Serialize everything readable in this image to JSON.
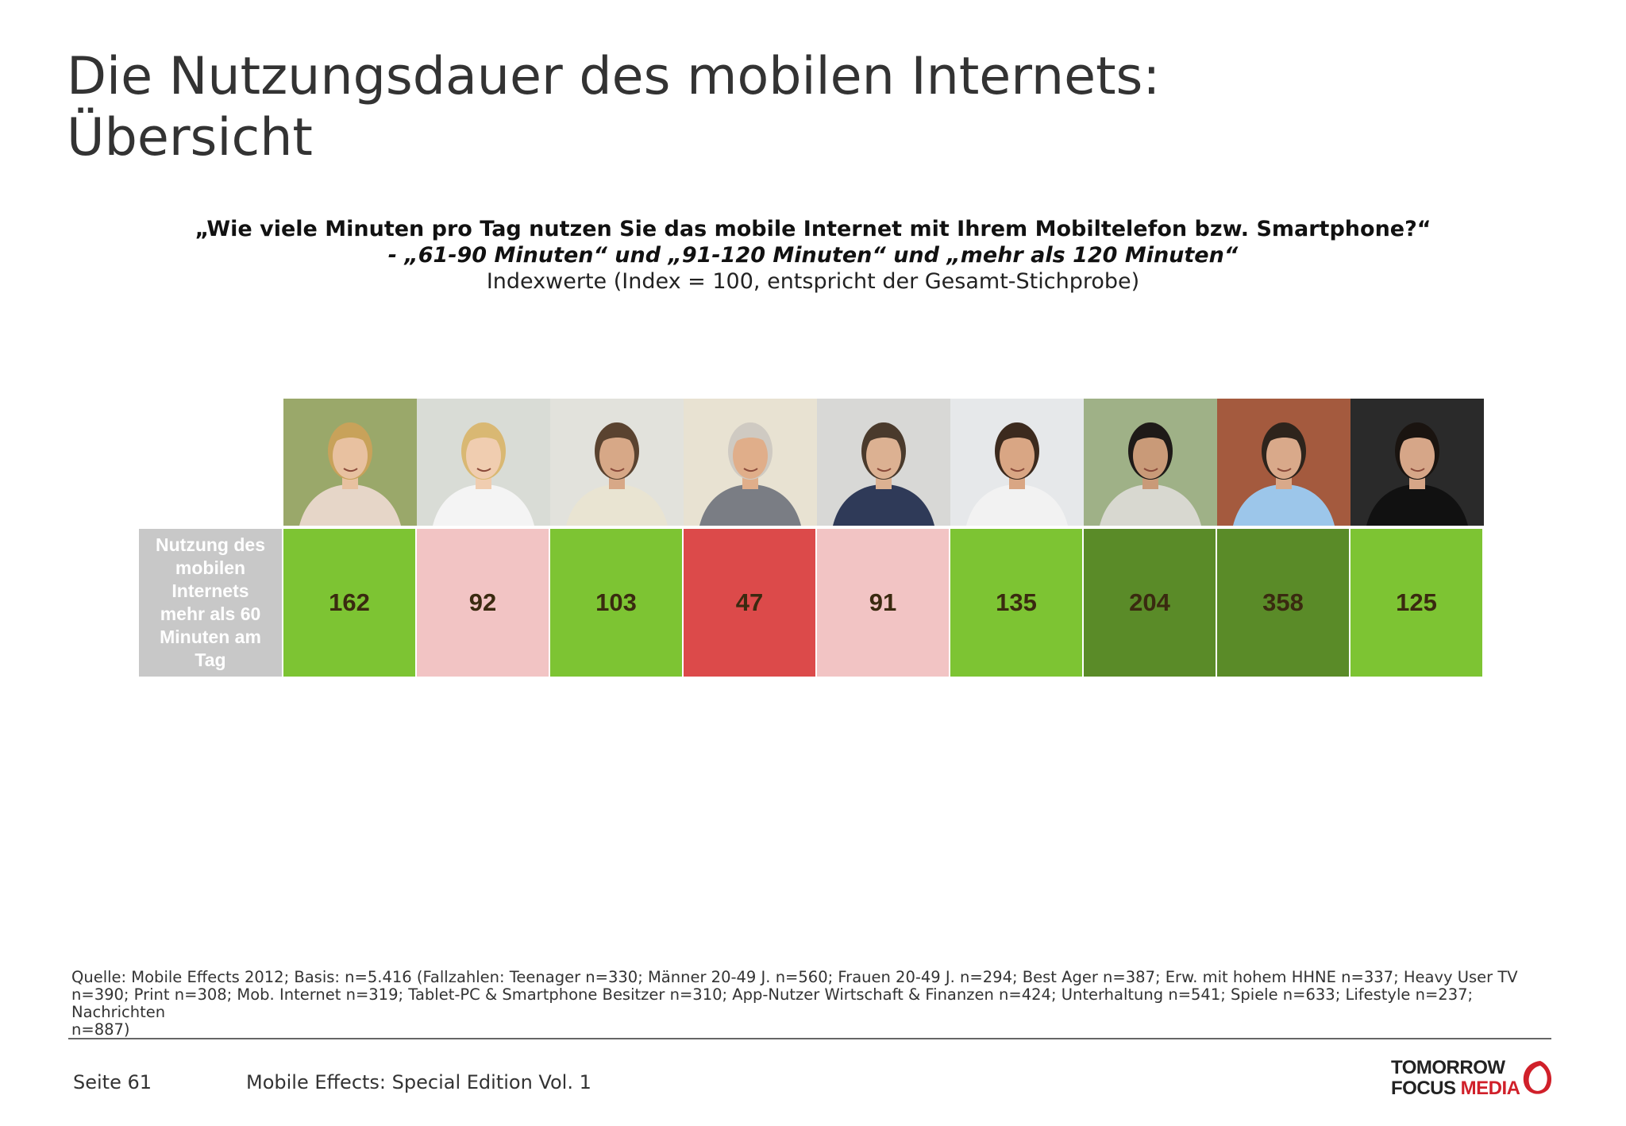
{
  "page": {
    "title_line1": "Die Nutzungsdauer des mobilen Internets:",
    "title_line2": "Übersicht"
  },
  "question": {
    "line1": "„Wie viele Minuten pro Tag nutzen Sie das mobile Internet mit Ihrem Mobiltelefon bzw. Smartphone?“",
    "line2": "- „61-90 Minuten“ und „91-120 Minuten“ und „mehr als 120 Minuten“",
    "line3": "Indexwerte (Index = 100, entspricht der Gesamt-Stichprobe)"
  },
  "chart_data": {
    "type": "table",
    "row_label": "Nutzung des mobilen Internets mehr als 60 Minuten am Tag",
    "row_label_lines": [
      "Nutzung des",
      "mobilen",
      "Internets",
      "mehr als 60",
      "Minuten am",
      "Tag"
    ],
    "values": [
      162,
      92,
      103,
      47,
      91,
      135,
      204,
      358,
      125
    ],
    "cell_colors": [
      "#7dc433",
      "#f2c4c4",
      "#7dc433",
      "#dc4a4a",
      "#f2c4c4",
      "#7dc433",
      "#5a8b28",
      "#5a8b28",
      "#7dc433"
    ],
    "photos": [
      "woman-smartphone-photo",
      "blonde-woman-phone-photo",
      "man-calling-photo",
      "senior-couple-photo",
      "businessman-calling-photo",
      "teen-tv-photo",
      "man-newspaper-photo",
      "man-tablet-photo",
      "man-tablet-smartphone-photo"
    ]
  },
  "footer": {
    "source_line1": "Quelle: Mobile Effects 2012; Basis: n=5.416 (Fallzahlen: Teenager n=330; Männer 20-49 J. n=560; Frauen 20-49 J. n=294; Best Ager n=387; Erw. mit hohem HHNE n=337; Heavy User TV",
    "source_line2": "n=390; Print n=308; Mob. Internet n=319; Tablet-PC & Smartphone Besitzer n=310; App-Nutzer Wirtschaft & Finanzen n=424; Unterhaltung n=541; Spiele n=633; Lifestyle n=237; Nachrichten",
    "source_line3": "n=887)",
    "page_number": "Seite 61",
    "edition": "Mobile Effects: Special Edition Vol. 1",
    "logo_line1": "TOMORROW",
    "logo_line2a": "FOCUS ",
    "logo_line2b": "MEDIA"
  }
}
